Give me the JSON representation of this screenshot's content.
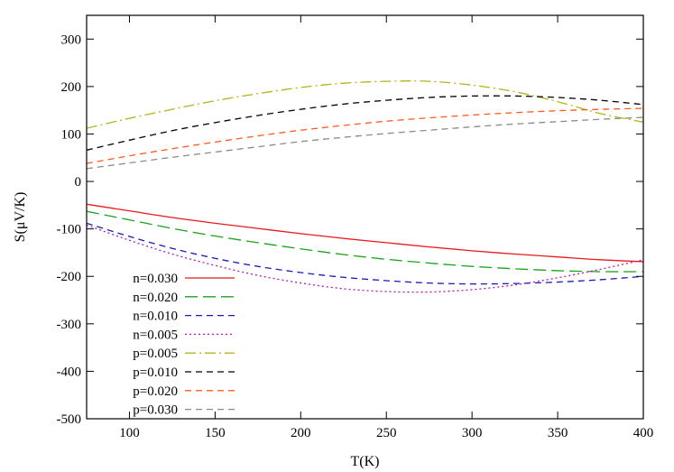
{
  "chart_data": {
    "type": "line",
    "title": "",
    "xlabel": "T(K)",
    "ylabel": "S(μV/K)",
    "xlim": [
      75,
      400
    ],
    "ylim": [
      -500,
      350
    ],
    "xticks": [
      100,
      150,
      200,
      250,
      300,
      350,
      400
    ],
    "yticks": [
      -500,
      -400,
      -300,
      -200,
      -100,
      0,
      100,
      200,
      300
    ],
    "x_tick_labels": [
      "100",
      "150",
      "200",
      "250",
      "300",
      "350",
      "400"
    ],
    "y_tick_labels": [
      "-500",
      "-400",
      "-300",
      "-200",
      "-100",
      "0",
      "100",
      "200",
      "300"
    ],
    "grid": false,
    "legend_position": "bottom-left",
    "x": [
      75,
      100,
      125,
      150,
      175,
      200,
      225,
      250,
      275,
      300,
      325,
      350,
      375,
      400
    ],
    "series": [
      {
        "name": "n=0.030",
        "color": "#e8191a",
        "dash": "solid",
        "values": [
          -48,
          -62,
          -76,
          -88,
          -99,
          -110,
          -120,
          -129,
          -138,
          -146,
          -153,
          -159,
          -165,
          -169
        ]
      },
      {
        "name": "n=0.020",
        "color": "#1aa31a",
        "dash": "longdash",
        "values": [
          -63,
          -81,
          -99,
          -115,
          -129,
          -142,
          -154,
          -164,
          -172,
          -179,
          -184,
          -188,
          -190,
          -190
        ]
      },
      {
        "name": "n=0.010",
        "color": "#1a1ab4",
        "dash": "dash",
        "values": [
          -88,
          -116,
          -141,
          -162,
          -179,
          -192,
          -202,
          -209,
          -214,
          -216,
          -215,
          -212,
          -207,
          -200
        ]
      },
      {
        "name": "n=0.005",
        "color": "#b41ab4",
        "dash": "dot",
        "values": [
          -92,
          -124,
          -153,
          -177,
          -198,
          -214,
          -226,
          -232,
          -233,
          -228,
          -218,
          -203,
          -185,
          -165
        ]
      },
      {
        "name": "p=0.005",
        "color": "#b4b41a",
        "dash": "dashdot",
        "values": [
          112,
          133,
          152,
          170,
          185,
          198,
          207,
          211,
          211,
          203,
          189,
          168,
          143,
          125
        ]
      },
      {
        "name": "p=0.010",
        "color": "#000000",
        "dash": "dash",
        "values": [
          66,
          87,
          107,
          124,
          139,
          152,
          163,
          171,
          177,
          180,
          180,
          177,
          171,
          162
        ]
      },
      {
        "name": "p=0.020",
        "color": "#ff5a1a",
        "dash": "dash",
        "values": [
          38,
          54,
          69,
          83,
          96,
          108,
          118,
          127,
          134,
          140,
          145,
          149,
          152,
          154
        ]
      },
      {
        "name": "p=0.030",
        "color": "#8a8a8a",
        "dash": "dash",
        "values": [
          27,
          39,
          51,
          62,
          73,
          84,
          93,
          101,
          108,
          115,
          121,
          126,
          131,
          135
        ]
      }
    ]
  }
}
